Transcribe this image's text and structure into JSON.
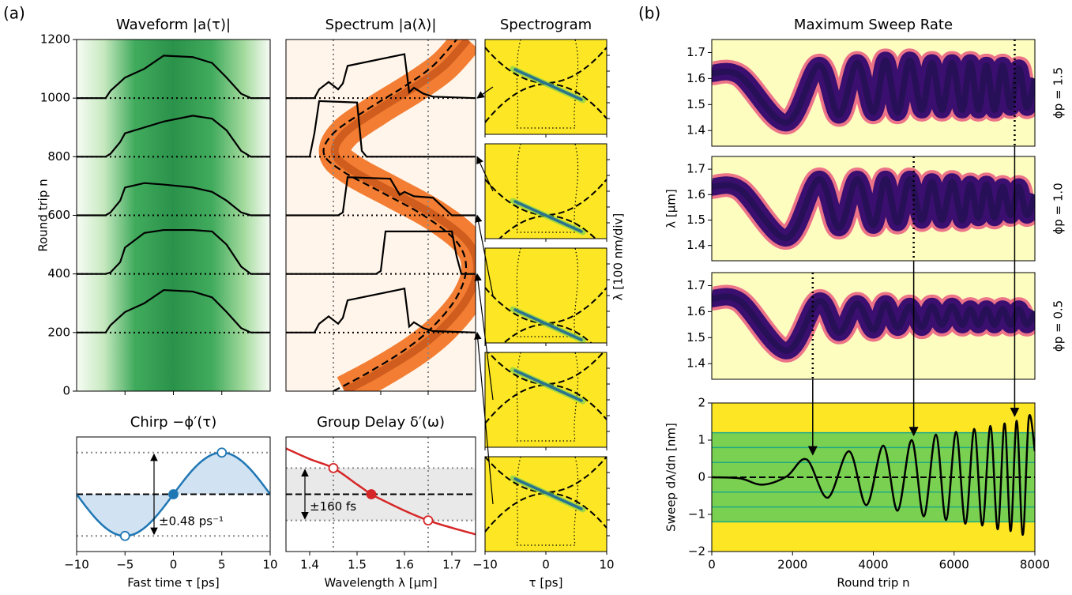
{
  "panel_labels": [
    "(a)",
    "(b)"
  ],
  "chart_data": [
    {
      "type": "profiles",
      "title": "Waveform |a(τ)|",
      "ylabel": "Round trip n",
      "xlim": [
        -10,
        10
      ],
      "ylim": [
        0,
        1200
      ],
      "yticks": [
        0,
        200,
        400,
        600,
        800,
        1000,
        1200
      ],
      "background": "green",
      "profiles": [
        {
          "baseline": 200,
          "x": [
            -10,
            -7,
            -6.5,
            -5.5,
            -5,
            -3,
            -1,
            2,
            4,
            5.5,
            7,
            8,
            10
          ],
          "values": [
            0,
            0,
            25,
            55,
            70,
            100,
            145,
            140,
            120,
            70,
            15,
            0,
            0
          ]
        },
        {
          "baseline": 400,
          "x": [
            -10,
            -7,
            -6.5,
            -5.5,
            -5,
            -3,
            -1,
            2,
            4,
            5.5,
            7,
            8,
            10
          ],
          "values": [
            0,
            0,
            5,
            40,
            90,
            140,
            150,
            150,
            145,
            100,
            25,
            0,
            0
          ]
        },
        {
          "baseline": 600,
          "x": [
            -10,
            -7,
            -6.5,
            -5.5,
            -5,
            -3,
            -1,
            2,
            4,
            5.5,
            7,
            8,
            10
          ],
          "values": [
            0,
            0,
            10,
            50,
            95,
            110,
            105,
            95,
            80,
            50,
            10,
            0,
            0
          ]
        },
        {
          "baseline": 800,
          "x": [
            -10,
            -7,
            -6.5,
            -5.5,
            -5,
            -3,
            -1,
            2,
            4,
            5.5,
            7,
            8,
            10
          ],
          "values": [
            0,
            0,
            10,
            50,
            80,
            100,
            120,
            140,
            130,
            90,
            20,
            0,
            0
          ]
        },
        {
          "baseline": 1000,
          "x": [
            -10,
            -7,
            -6.5,
            -5.5,
            -5,
            -3,
            -1,
            2,
            4,
            5.5,
            7,
            8,
            10
          ],
          "values": [
            0,
            0,
            25,
            55,
            70,
            100,
            145,
            140,
            120,
            70,
            15,
            0,
            0
          ]
        }
      ]
    },
    {
      "type": "profiles",
      "title": "Spectrum |a(λ)|",
      "xlim": [
        1.35,
        1.75
      ],
      "ylim": [
        0,
        1200
      ],
      "background": "orange",
      "vlines": [
        1.45,
        1.65
      ],
      "delay_curve": {
        "x": [
          1.45,
          1.52,
          1.6,
          1.66,
          1.71,
          1.73,
          1.71,
          1.64,
          1.55,
          1.47,
          1.43,
          1.45,
          1.52,
          1.6,
          1.66,
          1.71
        ],
        "y": [
          0,
          60,
          140,
          220,
          320,
          420,
          510,
          600,
          680,
          750,
          810,
          880,
          960,
          1040,
          1110,
          1200
        ]
      },
      "profiles": [
        {
          "baseline": 200,
          "x": [
            1.35,
            1.41,
            1.42,
            1.44,
            1.46,
            1.47,
            1.48,
            1.6,
            1.61,
            1.62,
            1.64,
            1.66,
            1.75
          ],
          "values": [
            0,
            0,
            30,
            55,
            30,
            50,
            110,
            150,
            20,
            35,
            15,
            5,
            0
          ]
        },
        {
          "baseline": 400,
          "x": [
            1.35,
            1.54,
            1.55,
            1.56,
            1.7,
            1.71,
            1.72,
            1.75
          ],
          "values": [
            0,
            0,
            10,
            145,
            145,
            60,
            0,
            0
          ]
        },
        {
          "baseline": 600,
          "x": [
            1.35,
            1.46,
            1.47,
            1.48,
            1.57,
            1.59,
            1.6,
            1.62,
            1.66,
            1.7,
            1.75
          ],
          "values": [
            0,
            0,
            10,
            130,
            125,
            70,
            80,
            65,
            60,
            0,
            0
          ]
        },
        {
          "baseline": 800,
          "x": [
            1.35,
            1.4,
            1.41,
            1.42,
            1.5,
            1.51,
            1.52,
            1.75
          ],
          "values": [
            0,
            0,
            80,
            190,
            185,
            20,
            0,
            0
          ]
        },
        {
          "baseline": 1000,
          "x": [
            1.35,
            1.41,
            1.42,
            1.44,
            1.46,
            1.47,
            1.48,
            1.6,
            1.61,
            1.62,
            1.64,
            1.66,
            1.75
          ],
          "values": [
            0,
            0,
            30,
            55,
            30,
            50,
            110,
            150,
            20,
            35,
            15,
            5,
            0
          ]
        }
      ]
    },
    {
      "type": "spectrogram",
      "title": "Spectrogram",
      "xlabel": "τ [ps]",
      "ylabel": "λ [100 nm/div]",
      "xlim": [
        -10,
        10
      ],
      "xticks": [
        {
          "value": -10,
          "label": "−10"
        },
        0,
        10
      ]
    },
    {
      "type": "line",
      "title": "Chirp −ϕ′(τ)",
      "xlabel": "Fast time τ [ps]",
      "xlim": [
        -10,
        10
      ],
      "ylim": [
        -0.66,
        0.66
      ],
      "xticks": [
        {
          "value": -10,
          "label": "−10"
        },
        {
          "value": -5,
          "label": "−5"
        },
        0,
        5,
        10
      ],
      "x": [
        -10,
        -9,
        -8,
        -7,
        -6,
        -5,
        -4,
        -3,
        -2,
        -1,
        0,
        1,
        2,
        3,
        4,
        5,
        6,
        7,
        8,
        9,
        10
      ],
      "values": [
        0,
        -0.148,
        -0.282,
        -0.388,
        -0.457,
        -0.48,
        -0.457,
        -0.388,
        -0.282,
        -0.148,
        0,
        0.148,
        0.282,
        0.388,
        0.457,
        0.48,
        0.457,
        0.388,
        0.282,
        0.148,
        0
      ],
      "color": "#1f77b4",
      "fill": true,
      "markers": {
        "x": [
          -5,
          0,
          5
        ],
        "values": [
          -0.48,
          0,
          0.48
        ]
      },
      "hlines": [
        -0.48,
        0.48
      ],
      "annotation": "±0.48 ps⁻¹"
    },
    {
      "type": "line",
      "title": "Group Delay δ′(ω)",
      "xlabel": "Wavelength λ [μm]",
      "xlim": [
        1.35,
        1.75
      ],
      "ylim": [
        -350,
        350
      ],
      "xticks": [
        1.4,
        1.5,
        1.6,
        1.7
      ],
      "x": [
        1.35,
        1.4,
        1.45,
        1.5,
        1.53,
        1.55,
        1.6,
        1.65,
        1.7,
        1.75
      ],
      "values": [
        280,
        215,
        160,
        60,
        0,
        -30,
        -100,
        -160,
        -205,
        -245
      ],
      "color": "#d62728",
      "band": true,
      "markers": {
        "x": [
          1.45,
          1.53,
          1.65
        ],
        "values": [
          160,
          0,
          -160
        ]
      },
      "hlines": [
        -160,
        160
      ],
      "vlines": [
        1.45,
        1.65
      ],
      "annotation": "±160 fs"
    },
    {
      "type": "sweep-map",
      "title": "Maximum Sweep Rate",
      "ylabel": "λ [μm]",
      "xlim": [
        0,
        8000
      ],
      "ylim": [
        1.34,
        1.75
      ],
      "yticks": [
        1.4,
        1.5,
        1.6,
        1.7
      ],
      "panels": [
        {
          "label": "ϕp = 1.5",
          "marked_round": 7500,
          "x": [
            0,
            700,
            1850,
            2650,
            3150,
            3600,
            4000,
            4300,
            4600,
            4900,
            5200,
            5450,
            5700,
            5950,
            6200,
            6400,
            6600,
            6800,
            7000,
            7200,
            7400,
            7600,
            7800,
            8000
          ],
          "values": [
            1.62,
            1.61,
            1.43,
            1.65,
            1.46,
            1.66,
            1.47,
            1.67,
            1.47,
            1.67,
            1.48,
            1.66,
            1.48,
            1.66,
            1.48,
            1.66,
            1.48,
            1.65,
            1.48,
            1.65,
            1.49,
            1.64,
            1.49,
            1.6
          ]
        },
        {
          "label": "ϕp = 1.0",
          "marked_round": 5000,
          "x": [
            0,
            700,
            1850,
            2650,
            3150,
            3600,
            4000,
            4300,
            4600,
            4900,
            5200,
            5450,
            5700,
            5950,
            6200,
            6400,
            6600,
            6800,
            7000,
            7200,
            7400,
            7600,
            7800,
            8000
          ],
          "values": [
            1.63,
            1.62,
            1.43,
            1.66,
            1.47,
            1.66,
            1.48,
            1.66,
            1.49,
            1.66,
            1.5,
            1.65,
            1.5,
            1.65,
            1.5,
            1.64,
            1.51,
            1.64,
            1.51,
            1.63,
            1.52,
            1.63,
            1.52,
            1.6
          ]
        },
        {
          "label": "ϕp = 0.5",
          "marked_round": 2500,
          "x": [
            0,
            700,
            1850,
            2650,
            3150,
            3600,
            4000,
            4300,
            4600,
            4900,
            5200,
            5450,
            5700,
            5950,
            6200,
            6400,
            6600,
            6800,
            7000,
            7200,
            7400,
            7600,
            7800,
            8000
          ],
          "values": [
            1.65,
            1.64,
            1.45,
            1.64,
            1.52,
            1.63,
            1.53,
            1.63,
            1.54,
            1.62,
            1.54,
            1.62,
            1.55,
            1.62,
            1.55,
            1.61,
            1.55,
            1.61,
            1.55,
            1.61,
            1.55,
            1.61,
            1.55,
            1.6
          ]
        }
      ]
    },
    {
      "type": "line",
      "xlabel": "Round trip n",
      "ylabel": "Sweep dλ/dn [nm]",
      "xlim": [
        0,
        8000
      ],
      "ylim": [
        -2,
        2
      ],
      "xticks": [
        0,
        2000,
        4000,
        6000,
        8000
      ],
      "yticks": [
        {
          "value": -2,
          "label": "−2"
        },
        {
          "value": -1,
          "label": "−1"
        },
        0,
        1,
        2
      ],
      "x": [
        0,
        700,
        1250,
        1850,
        2350,
        2870,
        3400,
        3830,
        4250,
        4600,
        4950,
        5250,
        5550,
        5800,
        6050,
        6280,
        6500,
        6700,
        6900,
        7080,
        7250,
        7400,
        7550,
        7700,
        7850,
        8000
      ],
      "values": [
        0,
        -0.03,
        -0.2,
        0.02,
        0.48,
        -0.55,
        0.7,
        -0.75,
        0.85,
        -0.9,
        1.0,
        -1.05,
        1.15,
        -1.15,
        1.22,
        -1.25,
        1.3,
        -1.3,
        1.38,
        -1.4,
        1.45,
        -1.45,
        1.52,
        -1.55,
        1.6,
        0.7
      ],
      "color": "#000000",
      "bands": [
        -1.2,
        -0.8,
        -0.4,
        0.4,
        0.8,
        1.2
      ]
    }
  ]
}
